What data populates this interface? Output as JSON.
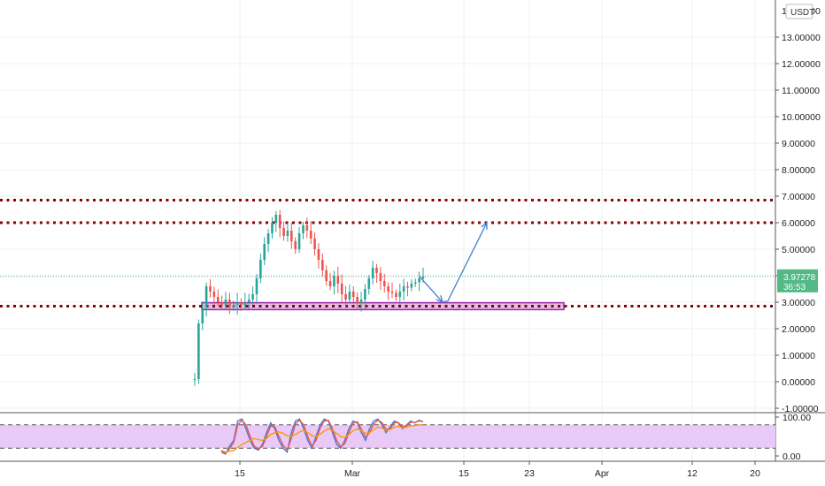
{
  "chart_data": [
    {
      "type": "candlestick",
      "currency_label": "USDT",
      "price_axis": {
        "min": -1,
        "max": 14,
        "ticks": [
          "-1.00000",
          "0.00000",
          "1.00000",
          "2.00000",
          "3.00000",
          "4.00000",
          "5.00000",
          "6.00000",
          "7.00000",
          "8.00000",
          "9.00000",
          "10.00000",
          "11.00000",
          "12.00000",
          "13.00000"
        ]
      },
      "time_axis": {
        "ticks": [
          "15",
          "Mar",
          "15",
          "23",
          "Apr",
          "12",
          "20"
        ]
      },
      "last_price": {
        "value": 3.97278,
        "label": "3.97278",
        "countdown": "36:53",
        "color": "#53b987"
      },
      "series": [
        {
          "name": "price",
          "up_color": "#26a69a",
          "down_color": "#ef5350",
          "x_range": [
            220,
            478
          ],
          "values": [
            0.1,
            2.2,
            2.8,
            3.6,
            3.4,
            3.2,
            3.0,
            2.9,
            3.1,
            2.8,
            2.9,
            3.0,
            2.9,
            3.0,
            3.1,
            3.3,
            3.9,
            4.6,
            5.2,
            5.6,
            6.0,
            6.3,
            5.8,
            5.5,
            5.7,
            5.3,
            5.0,
            5.6,
            5.9,
            5.7,
            5.4,
            5.0,
            4.6,
            4.2,
            3.8,
            3.6,
            4.0,
            3.7,
            3.3,
            3.1,
            3.4,
            3.2,
            2.95,
            3.1,
            3.5,
            3.9,
            4.3,
            4.1,
            3.8,
            3.6,
            3.4,
            3.35,
            3.2,
            3.4,
            3.6,
            3.55,
            3.7,
            3.75,
            3.9,
            3.97
          ]
        }
      ],
      "horizontal_levels": [
        {
          "value": 6.85,
          "color": "#8b0000",
          "style": "dotted"
        },
        {
          "value": 6.0,
          "color": "#8b0000",
          "style": "dotted"
        },
        {
          "value": 2.85,
          "color": "#8b0000",
          "style": "dotted"
        }
      ],
      "support_zone": {
        "low": 2.72,
        "high": 2.98,
        "x_start": 228,
        "x_end": 637,
        "border": "#9c27b0",
        "fill": "#e1bee7"
      },
      "projection_path": [
        [
          474,
          3.97
        ],
        [
          500,
          3.0
        ],
        [
          506,
          3.05
        ],
        [
          550,
          6.0
        ]
      ],
      "projection_color": "#3f7fd0",
      "grid": true
    },
    {
      "type": "line",
      "indicator": "stochastic",
      "y_axis": {
        "min": 0,
        "max": 100,
        "ticks": [
          "0.00",
          "100.00"
        ]
      },
      "bands": {
        "upper": 80,
        "lower": 20,
        "fill": "#e8c9f8"
      },
      "series": [
        {
          "name": "k",
          "color": "#3f7fd0",
          "values": [
            10,
            5,
            25,
            40,
            90,
            95,
            70,
            40,
            20,
            15,
            30,
            60,
            85,
            70,
            40,
            20,
            10,
            60,
            90,
            95,
            70,
            40,
            20,
            50,
            80,
            95,
            90,
            60,
            30,
            20,
            40,
            70,
            90,
            85,
            60,
            40,
            70,
            90,
            95,
            80,
            60,
            75,
            90,
            85,
            70,
            80,
            90,
            85,
            92,
            88
          ]
        },
        {
          "name": "d",
          "color": "#ef5350",
          "values": [
            12,
            8,
            18,
            35,
            80,
            92,
            80,
            50,
            25,
            18,
            25,
            50,
            78,
            75,
            50,
            28,
            15,
            45,
            82,
            92,
            80,
            50,
            25,
            40,
            72,
            90,
            92,
            70,
            40,
            24,
            32,
            60,
            84,
            88,
            70,
            48,
            60,
            82,
            92,
            86,
            68,
            70,
            85,
            86,
            75,
            78,
            87,
            86,
            90,
            89
          ]
        },
        {
          "name": "",
          "color": "#ff9800",
          "values": [
            15,
            10,
            12,
            14,
            22,
            30,
            35,
            40,
            45,
            42,
            40,
            45,
            55,
            60,
            62,
            58,
            52,
            50,
            55,
            62,
            66,
            60,
            52,
            50,
            56,
            64,
            70,
            66,
            58,
            50,
            48,
            55,
            65,
            70,
            66,
            58,
            60,
            68,
            74,
            72,
            66,
            68,
            74,
            76,
            72,
            74,
            78,
            78,
            80,
            80
          ]
        }
      ],
      "x_range": [
        250,
        478
      ]
    }
  ]
}
